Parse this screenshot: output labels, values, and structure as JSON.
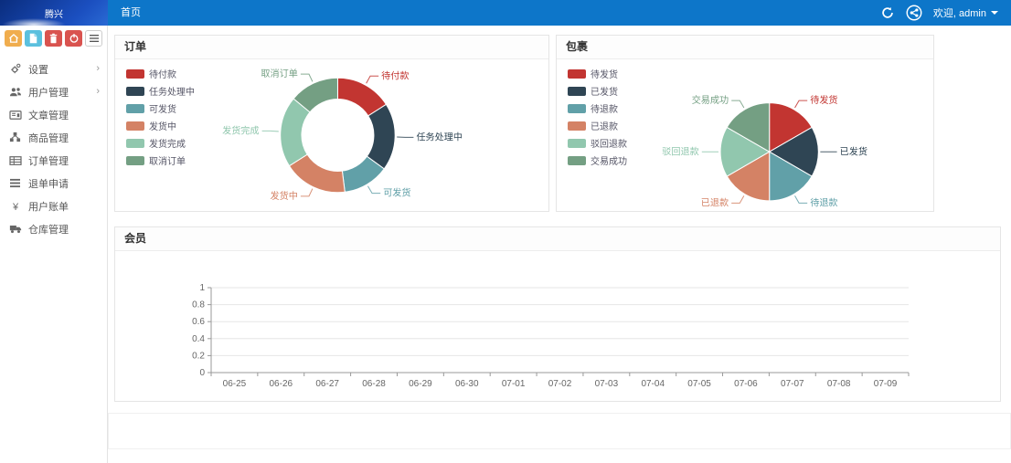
{
  "navbar": {
    "logo_text": "腾兴",
    "home_label": "首页",
    "welcome_text": "欢迎, admin"
  },
  "sidebar": {
    "chevron": "›",
    "toolbar_buttons": [
      "home",
      "file",
      "trash",
      "power",
      "list"
    ],
    "items": [
      {
        "label": "设置",
        "has_children": true
      },
      {
        "label": "用户管理",
        "has_children": true
      },
      {
        "label": "文章管理",
        "has_children": false
      },
      {
        "label": "商品管理",
        "has_children": false
      },
      {
        "label": "订单管理",
        "has_children": false
      },
      {
        "label": "退单申请",
        "has_children": false
      },
      {
        "label": "用户账单",
        "has_children": false
      },
      {
        "label": "仓库管理",
        "has_children": false
      }
    ]
  },
  "panels": {
    "orders": {
      "title": "订单"
    },
    "packages": {
      "title": "包裹"
    },
    "members": {
      "title": "会员"
    }
  },
  "colors": {
    "navbar_blue": "#0d76c9",
    "button_warning": "#f0ad4e",
    "button_info": "#5bc0de",
    "button_danger": "#d9534f",
    "chart_palette": [
      "#c23531",
      "#2f4554",
      "#61a0a8",
      "#d48265",
      "#91c7ae",
      "#749f83"
    ]
  },
  "chart_data": [
    {
      "id": "orders",
      "type": "pie",
      "subtype": "donut",
      "title": "订单",
      "labels": [
        "待付款",
        "任务处理中",
        "可发货",
        "发货中",
        "发货完成",
        "取消订单"
      ],
      "values": [
        16,
        19,
        13,
        18,
        20,
        14
      ],
      "colors": [
        "#c23531",
        "#2f4554",
        "#61a0a8",
        "#d48265",
        "#91c7ae",
        "#749f83"
      ],
      "legend_position": "left",
      "label_lines": true
    },
    {
      "id": "packages",
      "type": "pie",
      "subtype": "pie",
      "title": "包裹",
      "labels": [
        "待发货",
        "已发货",
        "待退款",
        "已退款",
        "驳回退款",
        "交易成功"
      ],
      "values": [
        1,
        1,
        1,
        1,
        1,
        1
      ],
      "colors": [
        "#c23531",
        "#2f4554",
        "#61a0a8",
        "#d48265",
        "#91c7ae",
        "#749f83"
      ],
      "legend_position": "left",
      "label_lines": true
    },
    {
      "id": "members",
      "type": "line",
      "title": "会员",
      "x": [
        "06-25",
        "06-26",
        "06-27",
        "06-28",
        "06-29",
        "06-30",
        "07-01",
        "07-02",
        "07-03",
        "07-04",
        "07-05",
        "07-06",
        "07-07",
        "07-08",
        "07-09"
      ],
      "series": [],
      "ylim": [
        0,
        1
      ],
      "yticks": [
        0,
        0.2,
        0.4,
        0.6,
        0.8,
        1
      ],
      "grid": true,
      "legend_position": "none"
    }
  ]
}
